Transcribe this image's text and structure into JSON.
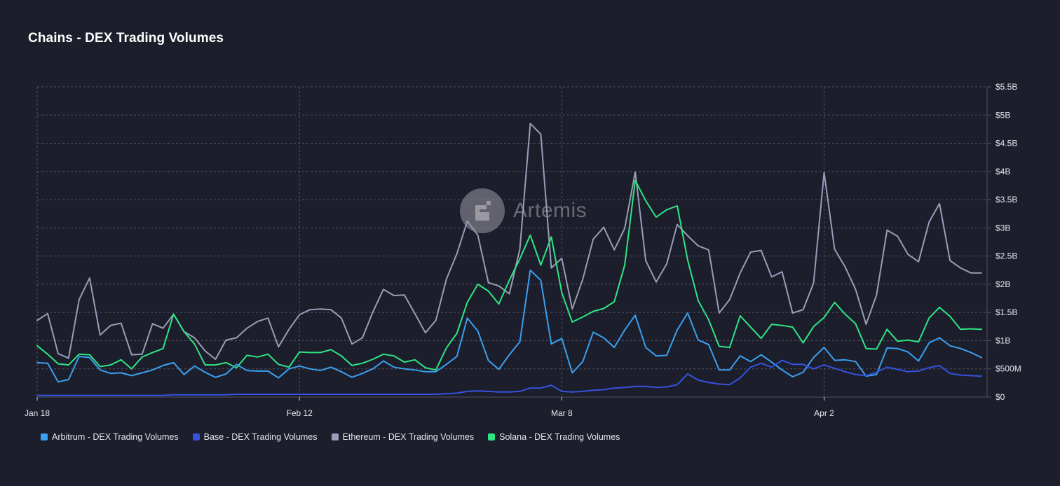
{
  "title": "Chains - DEX Trading Volumes",
  "watermark": {
    "text": "Artemis",
    "icon": "artemis-logo-icon"
  },
  "colors": {
    "background": "#1c1e2b",
    "grid": "#50525f",
    "arbitrum": "#3aa0f0",
    "base": "#3552e0",
    "ethereum": "#9a9cb8",
    "solana": "#2ee585"
  },
  "chart_data": {
    "type": "line",
    "x_start": "Jan 18",
    "x_ticks": [
      {
        "label": "Jan 18",
        "index": 0
      },
      {
        "label": "Feb 12",
        "index": 25
      },
      {
        "label": "Mar 8",
        "index": 50
      },
      {
        "label": "Apr 2",
        "index": 75
      }
    ],
    "y_ticks": [
      "$0",
      "$500M",
      "$1B",
      "$1.5B",
      "$2B",
      "$2.5B",
      "$3B",
      "$3.5B",
      "$4B",
      "$4.5B",
      "$5B",
      "$5.5B"
    ],
    "ylim": [
      0,
      5.5
    ],
    "y_unit": "B",
    "grid": true,
    "legend_position": "bottom-left",
    "series": [
      {
        "name": "Arbitrum - DEX Trading Volumes",
        "key": "arbitrum",
        "values": [
          0.61,
          0.6,
          0.27,
          0.31,
          0.72,
          0.7,
          0.48,
          0.42,
          0.43,
          0.38,
          0.43,
          0.48,
          0.56,
          0.61,
          0.4,
          0.55,
          0.44,
          0.35,
          0.41,
          0.58,
          0.47,
          0.46,
          0.46,
          0.34,
          0.5,
          0.55,
          0.5,
          0.47,
          0.53,
          0.45,
          0.35,
          0.42,
          0.5,
          0.64,
          0.53,
          0.5,
          0.48,
          0.45,
          0.45,
          0.58,
          0.72,
          1.4,
          1.17,
          0.65,
          0.49,
          0.75,
          0.98,
          2.25,
          2.07,
          0.94,
          1.04,
          0.43,
          0.63,
          1.15,
          1.05,
          0.88,
          1.19,
          1.45,
          0.88,
          0.73,
          0.74,
          1.19,
          1.49,
          1.01,
          0.93,
          0.48,
          0.48,
          0.73,
          0.63,
          0.75,
          0.62,
          0.48,
          0.36,
          0.44,
          0.7,
          0.88,
          0.65,
          0.66,
          0.63,
          0.37,
          0.4,
          0.87,
          0.86,
          0.8,
          0.64,
          0.96,
          1.05,
          0.91,
          0.86,
          0.79,
          0.7
        ]
      },
      {
        "name": "Base - DEX Trading Volumes",
        "key": "base",
        "values": [
          0.03,
          0.03,
          0.03,
          0.03,
          0.03,
          0.03,
          0.03,
          0.03,
          0.03,
          0.03,
          0.03,
          0.03,
          0.03,
          0.04,
          0.04,
          0.04,
          0.04,
          0.04,
          0.04,
          0.05,
          0.05,
          0.05,
          0.05,
          0.05,
          0.05,
          0.05,
          0.05,
          0.05,
          0.05,
          0.05,
          0.05,
          0.05,
          0.05,
          0.05,
          0.05,
          0.05,
          0.05,
          0.05,
          0.05,
          0.06,
          0.07,
          0.1,
          0.11,
          0.1,
          0.09,
          0.09,
          0.1,
          0.16,
          0.16,
          0.21,
          0.1,
          0.09,
          0.1,
          0.12,
          0.13,
          0.16,
          0.17,
          0.19,
          0.19,
          0.17,
          0.18,
          0.22,
          0.41,
          0.3,
          0.26,
          0.23,
          0.22,
          0.34,
          0.53,
          0.6,
          0.53,
          0.65,
          0.58,
          0.58,
          0.5,
          0.57,
          0.51,
          0.45,
          0.4,
          0.38,
          0.44,
          0.53,
          0.49,
          0.45,
          0.46,
          0.52,
          0.56,
          0.42,
          0.39,
          0.38,
          0.37
        ]
      },
      {
        "name": "Ethereum - DEX Trading Volumes",
        "key": "ethereum",
        "values": [
          1.36,
          1.48,
          0.77,
          0.69,
          1.73,
          2.11,
          1.1,
          1.27,
          1.31,
          0.75,
          0.76,
          1.3,
          1.22,
          1.47,
          1.16,
          1.05,
          0.82,
          0.67,
          1.01,
          1.05,
          1.22,
          1.34,
          1.4,
          0.89,
          1.2,
          1.46,
          1.55,
          1.56,
          1.55,
          1.4,
          0.94,
          1.05,
          1.51,
          1.91,
          1.8,
          1.81,
          1.48,
          1.14,
          1.36,
          2.09,
          2.54,
          3.12,
          2.87,
          2.03,
          1.97,
          1.83,
          2.62,
          4.85,
          4.66,
          2.29,
          2.46,
          1.56,
          2.09,
          2.8,
          3.01,
          2.61,
          2.99,
          3.99,
          2.42,
          2.04,
          2.36,
          3.06,
          2.86,
          2.68,
          2.61,
          1.49,
          1.73,
          2.2,
          2.57,
          2.6,
          2.13,
          2.22,
          1.49,
          1.55,
          2.02,
          3.98,
          2.62,
          2.31,
          1.91,
          1.29,
          1.81,
          2.96,
          2.85,
          2.53,
          2.4,
          3.1,
          3.43,
          2.42,
          2.29,
          2.2,
          2.2
        ]
      },
      {
        "name": "Solana - DEX Trading Volumes",
        "key": "solana",
        "values": [
          0.91,
          0.76,
          0.59,
          0.57,
          0.76,
          0.75,
          0.54,
          0.57,
          0.66,
          0.5,
          0.71,
          0.79,
          0.86,
          1.47,
          1.16,
          0.94,
          0.57,
          0.57,
          0.61,
          0.52,
          0.74,
          0.71,
          0.76,
          0.58,
          0.53,
          0.8,
          0.79,
          0.79,
          0.84,
          0.73,
          0.56,
          0.6,
          0.67,
          0.76,
          0.73,
          0.62,
          0.66,
          0.52,
          0.48,
          0.87,
          1.13,
          1.68,
          2.0,
          1.88,
          1.65,
          2.07,
          2.45,
          2.87,
          2.34,
          2.84,
          1.85,
          1.33,
          1.42,
          1.52,
          1.57,
          1.69,
          2.34,
          3.84,
          3.48,
          3.19,
          3.32,
          3.39,
          2.43,
          1.71,
          1.37,
          0.9,
          0.88,
          1.44,
          1.24,
          1.04,
          1.29,
          1.27,
          1.24,
          0.96,
          1.25,
          1.41,
          1.68,
          1.47,
          1.3,
          0.86,
          0.85,
          1.2,
          0.99,
          1.01,
          0.98,
          1.4,
          1.59,
          1.43,
          1.2,
          1.21,
          1.2
        ]
      }
    ]
  }
}
